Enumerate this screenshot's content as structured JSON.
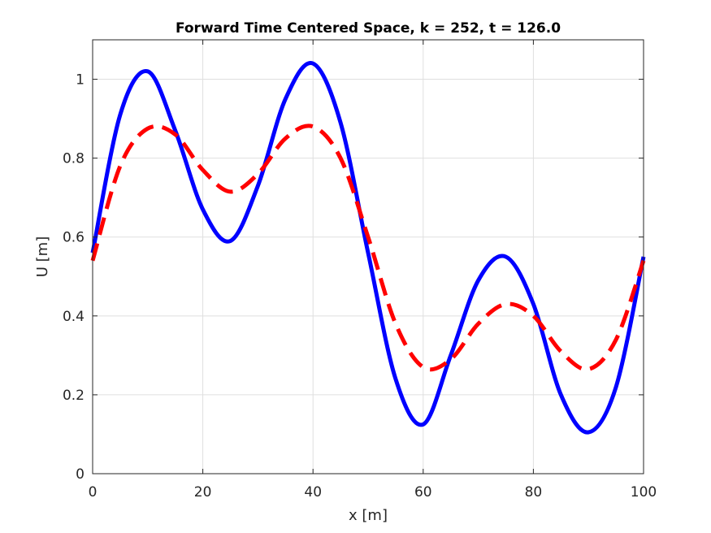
{
  "chart_data": {
    "type": "line",
    "title": "Forward Time Centered Space, k = 252, t = 126.0",
    "xlabel": "x [m]",
    "ylabel": "U [m]",
    "xlim": [
      0,
      100
    ],
    "ylim": [
      0,
      1.1
    ],
    "xticks": [
      0,
      20,
      40,
      60,
      80,
      100
    ],
    "xtick_labels": [
      "0",
      "20",
      "40",
      "60",
      "80",
      "100"
    ],
    "yticks": [
      0,
      0.2,
      0.4,
      0.6,
      0.8,
      1.0
    ],
    "ytick_labels": [
      "0",
      "0.2",
      "0.4",
      "0.6",
      "0.8",
      "1"
    ],
    "grid": true,
    "series": [
      {
        "style": "solid",
        "color": "#0000ff",
        "x": [
          0,
          5,
          10,
          15,
          20,
          25,
          30,
          35,
          40,
          45,
          50,
          55,
          60,
          65,
          70,
          75,
          80,
          85,
          90,
          95,
          100
        ],
        "y": [
          0.56,
          0.91,
          1.02,
          0.87,
          0.67,
          0.59,
          0.73,
          0.95,
          1.04,
          0.89,
          0.56,
          0.24,
          0.125,
          0.3,
          0.49,
          0.55,
          0.43,
          0.2,
          0.105,
          0.22,
          0.55
        ]
      },
      {
        "style": "dashed",
        "color": "#ff0000",
        "x": [
          0,
          5,
          10,
          15,
          20,
          25,
          30,
          35,
          40,
          45,
          50,
          55,
          60,
          65,
          70,
          75,
          80,
          85,
          90,
          95,
          100
        ],
        "y": [
          0.54,
          0.78,
          0.875,
          0.86,
          0.77,
          0.715,
          0.76,
          0.85,
          0.88,
          0.8,
          0.6,
          0.38,
          0.27,
          0.29,
          0.38,
          0.43,
          0.4,
          0.31,
          0.265,
          0.34,
          0.54
        ]
      }
    ]
  }
}
